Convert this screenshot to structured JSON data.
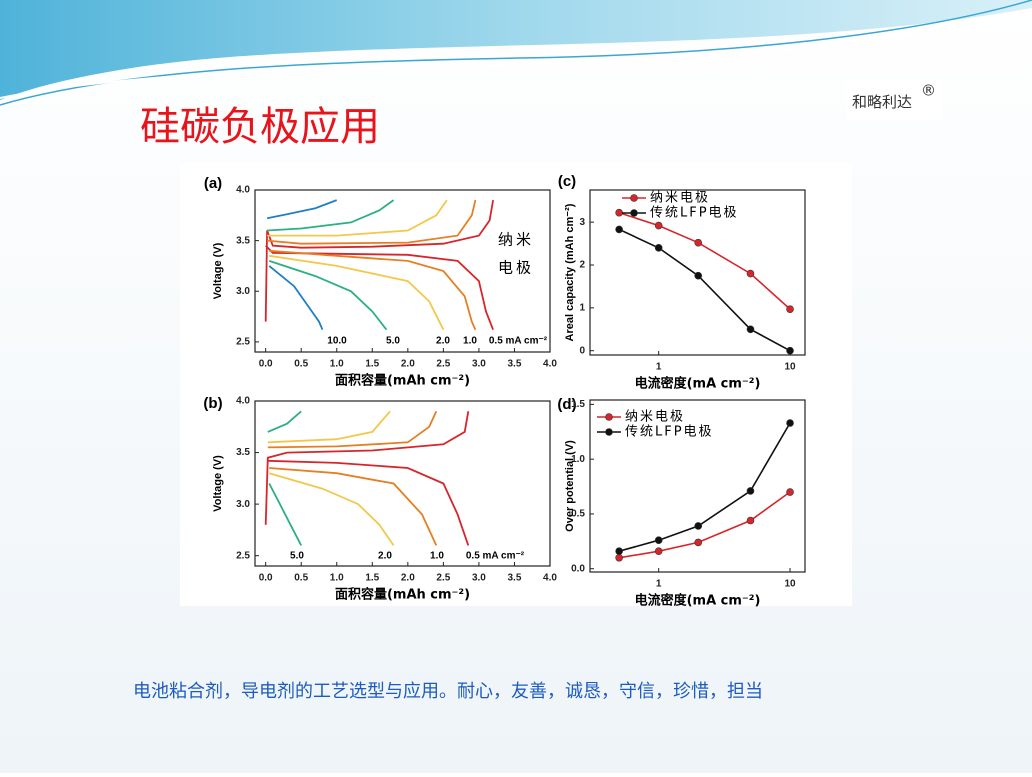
{
  "slide": {
    "title": "硅碳负极应用",
    "logo": "和略利达",
    "logo_mark": "®",
    "footer": "电池粘合剂，导电剂的工艺选型与应用。耐心，友善，诚恳，守信，珍惜，担当"
  },
  "chart_data": [
    {
      "type": "line",
      "panel_label": "(a)",
      "y_label": "Voltage (V)",
      "x_label": "面积容量(mAh cm⁻²)",
      "xlim": [
        -0.15,
        4.0
      ],
      "ylim": [
        2.4,
        4.0
      ],
      "xticks": [
        {
          "value": 0,
          "label": "0.0"
        },
        0.5,
        {
          "value": 1,
          "label": "1.0"
        },
        1.5,
        {
          "value": 2,
          "label": "2.0"
        },
        2.5,
        {
          "value": 3,
          "label": "3.0"
        },
        3.5,
        {
          "value": 4,
          "label": "4.0"
        }
      ],
      "yticks": [
        2.5,
        {
          "value": 3,
          "label": "3.0"
        },
        3.5,
        {
          "value": 4,
          "label": "4.0"
        }
      ],
      "annotations": [
        "10.0",
        "5.0",
        "2.0",
        "1.0",
        "0.5 mA cm⁻²",
        "纳米",
        "电极"
      ],
      "series": [
        {
          "color": "#d7262b",
          "x": [
            0,
            0.02,
            0.1,
            0.5,
            1.5,
            2.5,
            3.0,
            3.15,
            3.2
          ],
          "values": [
            2.7,
            3.6,
            3.45,
            3.43,
            3.44,
            3.47,
            3.55,
            3.7,
            3.9
          ]
        },
        {
          "color": "#d7262b",
          "x": [
            0,
            0.1,
            1,
            2,
            2.7,
            3.0,
            3.1,
            3.2
          ],
          "values": [
            3.45,
            3.38,
            3.37,
            3.36,
            3.3,
            3.1,
            2.8,
            2.62
          ]
        },
        {
          "color": "#e67e22",
          "x": [
            0.02,
            0.5,
            2,
            2.7,
            2.9,
            2.95
          ],
          "values": [
            3.5,
            3.47,
            3.48,
            3.55,
            3.75,
            3.9
          ]
        },
        {
          "color": "#e67e22",
          "x": [
            0.05,
            1,
            2,
            2.5,
            2.8,
            2.9,
            2.95
          ],
          "values": [
            3.4,
            3.35,
            3.3,
            3.2,
            2.95,
            2.7,
            2.62
          ]
        },
        {
          "color": "#f2c84b",
          "x": [
            0.02,
            1,
            2,
            2.4,
            2.55
          ],
          "values": [
            3.55,
            3.55,
            3.6,
            3.75,
            3.9
          ]
        },
        {
          "color": "#f2c84b",
          "x": [
            0.05,
            1,
            2,
            2.3,
            2.5
          ],
          "values": [
            3.35,
            3.25,
            3.1,
            2.9,
            2.62
          ]
        },
        {
          "color": "#2bb07f",
          "x": [
            0.02,
            0.5,
            1.2,
            1.6,
            1.8
          ],
          "values": [
            3.6,
            3.62,
            3.68,
            3.8,
            3.9
          ]
        },
        {
          "color": "#2bb07f",
          "x": [
            0.05,
            0.7,
            1.2,
            1.5,
            1.7
          ],
          "values": [
            3.3,
            3.15,
            3.0,
            2.8,
            2.62
          ]
        },
        {
          "color": "#1f7fc4",
          "x": [
            0.02,
            0.3,
            0.7,
            1.0
          ],
          "values": [
            3.72,
            3.76,
            3.82,
            3.9
          ]
        },
        {
          "color": "#1f7fc4",
          "x": [
            0.05,
            0.4,
            0.6,
            0.75,
            0.8
          ],
          "values": [
            3.25,
            3.05,
            2.85,
            2.7,
            2.62
          ]
        }
      ]
    },
    {
      "type": "line",
      "panel_label": "(b)",
      "y_label": "Voltage (V)",
      "x_label": "面积容量(mAh cm⁻²)",
      "xlim": [
        -0.15,
        4.0
      ],
      "ylim": [
        2.4,
        4.0
      ],
      "xticks": [
        {
          "value": 0,
          "label": "0.0"
        },
        0.5,
        {
          "value": 1,
          "label": "1.0"
        },
        1.5,
        {
          "value": 2,
          "label": "2.0"
        },
        2.5,
        {
          "value": 3,
          "label": "3.0"
        },
        3.5,
        {
          "value": 4,
          "label": "4.0"
        }
      ],
      "yticks": [
        2.5,
        {
          "value": 3,
          "label": "3.0"
        },
        3.5,
        {
          "value": 4,
          "label": "4.0"
        }
      ],
      "annotations": [
        "5.0",
        "2.0",
        "1.0",
        "0.5 mA cm⁻²"
      ],
      "series": [
        {
          "color": "#d7262b",
          "x": [
            0,
            0.03,
            0.3,
            1.5,
            2.5,
            2.8,
            2.85
          ],
          "values": [
            2.8,
            3.45,
            3.5,
            3.52,
            3.58,
            3.7,
            3.9
          ]
        },
        {
          "color": "#d7262b",
          "x": [
            0.03,
            1,
            2,
            2.5,
            2.7,
            2.85
          ],
          "values": [
            3.42,
            3.4,
            3.35,
            3.2,
            2.9,
            2.6
          ]
        },
        {
          "color": "#e67e22",
          "x": [
            0.03,
            1,
            2,
            2.3,
            2.4
          ],
          "values": [
            3.55,
            3.56,
            3.6,
            3.75,
            3.9
          ]
        },
        {
          "color": "#e67e22",
          "x": [
            0.05,
            1,
            1.8,
            2.2,
            2.4
          ],
          "values": [
            3.35,
            3.3,
            3.2,
            2.9,
            2.6
          ]
        },
        {
          "color": "#f2c84b",
          "x": [
            0.03,
            1,
            1.5,
            1.75
          ],
          "values": [
            3.6,
            3.63,
            3.7,
            3.9
          ]
        },
        {
          "color": "#f2c84b",
          "x": [
            0.05,
            0.8,
            1.3,
            1.6,
            1.8
          ],
          "values": [
            3.3,
            3.15,
            3.0,
            2.8,
            2.6
          ]
        },
        {
          "color": "#2bb07f",
          "x": [
            0.03,
            0.3,
            0.5
          ],
          "values": [
            3.7,
            3.78,
            3.9
          ]
        },
        {
          "color": "#2bb07f",
          "x": [
            0.05,
            0.2,
            0.35,
            0.5
          ],
          "values": [
            3.2,
            3.0,
            2.8,
            2.6
          ]
        }
      ]
    },
    {
      "type": "line",
      "panel_label": "(c)",
      "y_label": "Areal capacity (mAh cm⁻²)",
      "x_label": "电流密度(mA cm⁻²)",
      "xscale": "log",
      "marker": "circle",
      "legend": "upper left",
      "xlim": [
        0.3,
        13
      ],
      "ylim": [
        -0.1,
        3.75
      ],
      "xticks": [
        1,
        10
      ],
      "yticks": [
        0,
        1,
        2,
        3
      ],
      "x": [
        0.5,
        1,
        2,
        5,
        10
      ],
      "series": [
        {
          "name": "纳米电极",
          "color": "#d7262b",
          "values": [
            3.22,
            2.92,
            2.52,
            1.8,
            0.97
          ]
        },
        {
          "name": "传统LFP电极",
          "color": "#111111",
          "values": [
            2.83,
            2.4,
            1.75,
            0.5,
            0.0
          ]
        }
      ]
    },
    {
      "type": "line",
      "panel_label": "(d)",
      "y_label": "Over potential (V)",
      "x_label": "电流密度(mA cm⁻²)",
      "xscale": "log",
      "marker": "circle",
      "legend": "upper left",
      "xlim": [
        0.3,
        13
      ],
      "ylim": [
        -0.03,
        1.54
      ],
      "xticks": [
        1,
        10
      ],
      "yticks": [
        {
          "value": 0,
          "label": "0.0"
        },
        0.5,
        {
          "value": 1,
          "label": "1.0"
        },
        1.5
      ],
      "x": [
        0.5,
        1,
        2,
        5,
        10
      ],
      "series": [
        {
          "name": "纳米电极",
          "color": "#d7262b",
          "values": [
            0.1,
            0.16,
            0.24,
            0.44,
            0.7
          ]
        },
        {
          "name": "传统LFP电极",
          "color": "#111111",
          "values": [
            0.16,
            0.26,
            0.39,
            0.71,
            1.33
          ]
        }
      ]
    }
  ]
}
